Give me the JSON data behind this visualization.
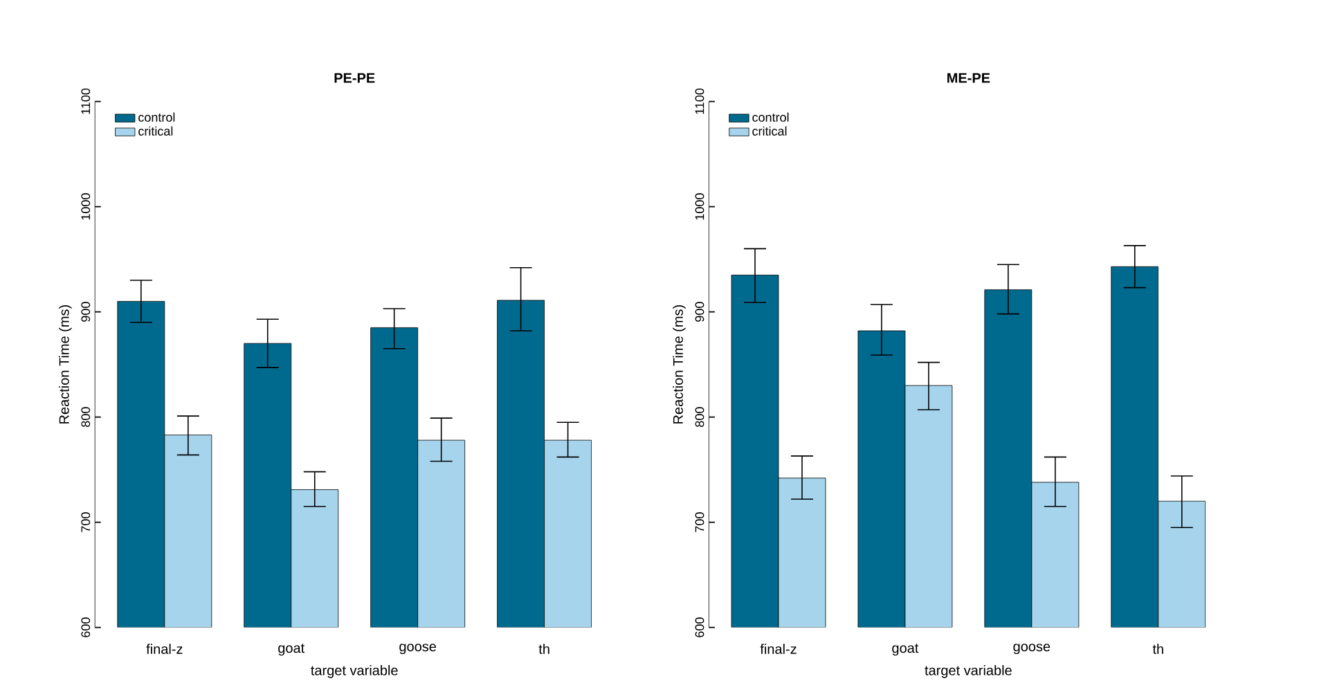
{
  "chart_data": [
    {
      "type": "bar",
      "title": "PE-PE",
      "xlabel": "target variable",
      "ylabel": "Reaction Time (ms)",
      "categories": [
        "final-z",
        "goat",
        "goose",
        "th"
      ],
      "series": [
        {
          "name": "control",
          "color": "#006a8e",
          "values": [
            910,
            870,
            885,
            911
          ],
          "errors": [
            [
              890,
              930
            ],
            [
              847,
              893
            ],
            [
              865,
              903
            ],
            [
              882,
              942
            ]
          ]
        },
        {
          "name": "critical",
          "color": "#a6d4ec",
          "values": [
            783,
            731,
            778,
            778
          ],
          "errors": [
            [
              764,
              801
            ],
            [
              715,
              748
            ],
            [
              758,
              799
            ],
            [
              762,
              795
            ]
          ]
        }
      ],
      "ylim": [
        600,
        1100
      ],
      "yticks": [
        600,
        700,
        800,
        900,
        1000,
        1100
      ],
      "legend": "top left"
    },
    {
      "type": "bar",
      "title": "ME-PE",
      "xlabel": "target variable",
      "ylabel": "Reaction Time (ms)",
      "categories": [
        "final-z",
        "goat",
        "goose",
        "th"
      ],
      "series": [
        {
          "name": "control",
          "color": "#006a8e",
          "values": [
            935,
            882,
            921,
            943
          ],
          "errors": [
            [
              909,
              960
            ],
            [
              859,
              907
            ],
            [
              898,
              945
            ],
            [
              923,
              963
            ]
          ]
        },
        {
          "name": "critical",
          "color": "#a6d4ec",
          "values": [
            742,
            830,
            738,
            720
          ],
          "errors": [
            [
              722,
              763
            ],
            [
              807,
              852
            ],
            [
              715,
              762
            ],
            [
              695,
              744
            ]
          ]
        }
      ],
      "ylim": [
        600,
        1100
      ],
      "yticks": [
        600,
        700,
        800,
        900,
        1000,
        1100
      ],
      "legend": "top left"
    }
  ]
}
